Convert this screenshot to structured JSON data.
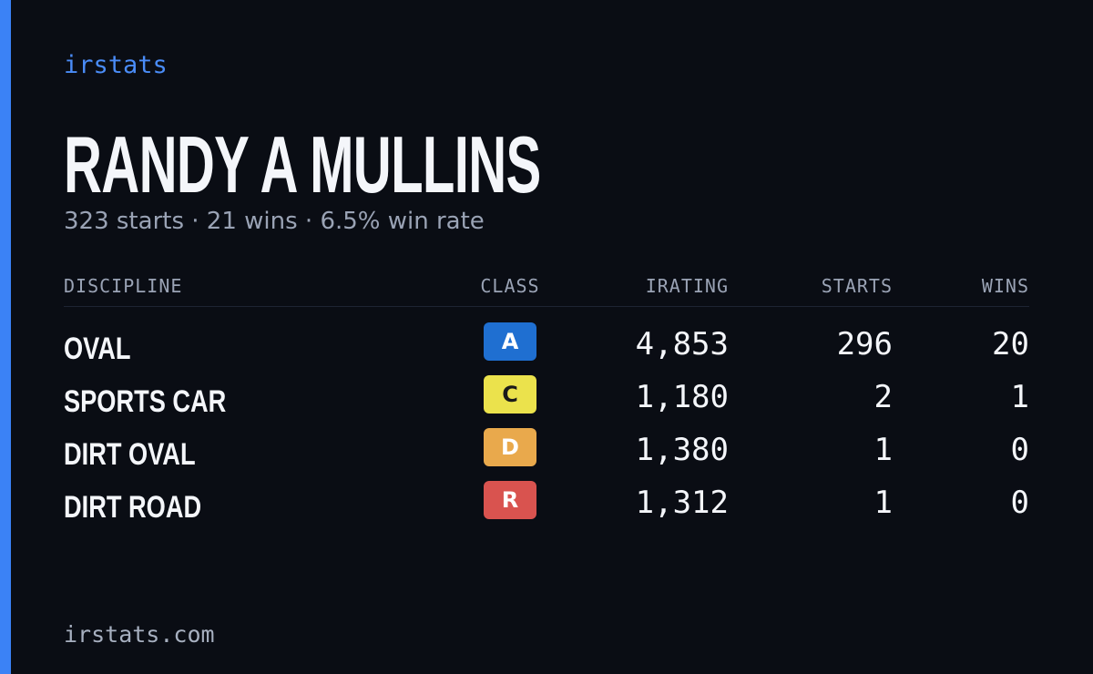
{
  "brand": "irstats",
  "driver": {
    "name": "RANDY A MULLINS",
    "summary": "323 starts · 21 wins · 6.5% win rate"
  },
  "table": {
    "headers": [
      "DISCIPLINE",
      "CLASS",
      "IRATING",
      "STARTS",
      "WINS"
    ],
    "rows": [
      [
        "OVAL",
        "A",
        "4,853",
        "296",
        "20"
      ],
      [
        "SPORTS CAR",
        "C",
        "1,180",
        "2",
        "1"
      ],
      [
        "DIRT OVAL",
        "D",
        "1,380",
        "1",
        "0"
      ],
      [
        "DIRT ROAD",
        "R",
        "1,312",
        "1",
        "0"
      ]
    ],
    "badge_colors": [
      {
        "background": "#1f6fd1",
        "text": "#ffffff"
      },
      {
        "background": "#ebe24c",
        "text": "#1a1a1a"
      },
      {
        "background": "#e9a94c",
        "text": "#ffffff"
      },
      {
        "background": "#d9534f",
        "text": "#ffffff"
      }
    ]
  },
  "footer": "irstats.com"
}
